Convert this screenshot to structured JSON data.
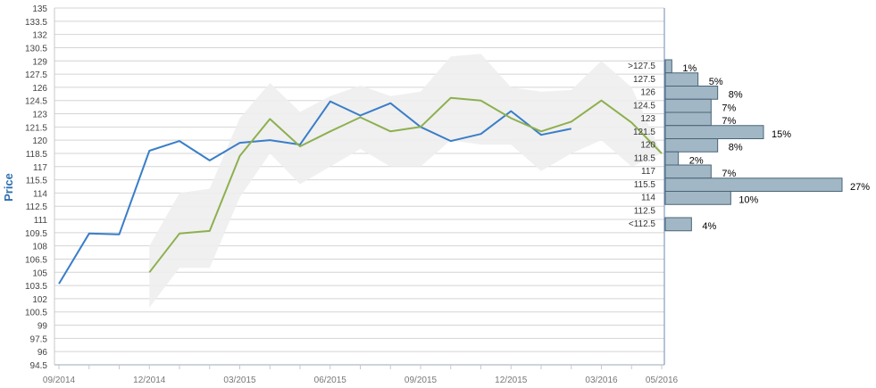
{
  "chart_data": [
    {
      "type": "line",
      "title": "",
      "xlabel": "",
      "ylabel": "Price",
      "ylim": [
        94.5,
        135
      ],
      "y_ticks": [
        94.5,
        96,
        97.5,
        99,
        100.5,
        102,
        103.5,
        105,
        106.5,
        108,
        109.5,
        111,
        112.5,
        114,
        115.5,
        117,
        118.5,
        120,
        121.5,
        123,
        124.5,
        126,
        127.5,
        129,
        130.5,
        132,
        133.5,
        135
      ],
      "x_ticks": [
        {
          "x": "2014-09",
          "label": "09/2014"
        },
        {
          "x": "2014-12",
          "label": "12/2014"
        },
        {
          "x": "2015-03",
          "label": "03/2015"
        },
        {
          "x": "2015-06",
          "label": "06/2015"
        },
        {
          "x": "2015-09",
          "label": "09/2015"
        },
        {
          "x": "2015-12",
          "label": "12/2015"
        },
        {
          "x": "2016-03",
          "label": "03/2016"
        },
        {
          "x": "2016-05",
          "label": "05/2016"
        }
      ],
      "grid": true,
      "series": [
        {
          "color": "#3a7ec8",
          "points": [
            {
              "x": "2014-09",
              "y": 103.7
            },
            {
              "x": "2014-10",
              "y": 109.4
            },
            {
              "x": "2014-11",
              "y": 109.3
            },
            {
              "x": "2014-12",
              "y": 118.8
            },
            {
              "x": "2015-01",
              "y": 119.9
            },
            {
              "x": "2015-02",
              "y": 117.7
            },
            {
              "x": "2015-03",
              "y": 119.7
            },
            {
              "x": "2015-04",
              "y": 120.0
            },
            {
              "x": "2015-05",
              "y": 119.5
            },
            {
              "x": "2015-06",
              "y": 124.4
            },
            {
              "x": "2015-07",
              "y": 122.8
            },
            {
              "x": "2015-08",
              "y": 124.2
            },
            {
              "x": "2015-09",
              "y": 121.5
            },
            {
              "x": "2015-10",
              "y": 119.9
            },
            {
              "x": "2015-11",
              "y": 120.7
            },
            {
              "x": "2015-12",
              "y": 123.3
            },
            {
              "x": "2016-01",
              "y": 120.6
            },
            {
              "x": "2016-02",
              "y": 121.3
            }
          ]
        },
        {
          "color": "#8db04f",
          "points": [
            {
              "x": "2014-12",
              "y": 105.0
            },
            {
              "x": "2015-01",
              "y": 109.4
            },
            {
              "x": "2015-02",
              "y": 109.7
            },
            {
              "x": "2015-03",
              "y": 118.2
            },
            {
              "x": "2015-04",
              "y": 122.4
            },
            {
              "x": "2015-05",
              "y": 119.3
            },
            {
              "x": "2015-06",
              "y": 121.0
            },
            {
              "x": "2015-07",
              "y": 122.6
            },
            {
              "x": "2015-08",
              "y": 121.0
            },
            {
              "x": "2015-09",
              "y": 121.5
            },
            {
              "x": "2015-10",
              "y": 124.8
            },
            {
              "x": "2015-11",
              "y": 124.5
            },
            {
              "x": "2015-12",
              "y": 122.5
            },
            {
              "x": "2016-01",
              "y": 121.0
            },
            {
              "x": "2016-02",
              "y": 122.1
            },
            {
              "x": "2016-03",
              "y": 124.5
            },
            {
              "x": "2016-04",
              "y": 122.0
            },
            {
              "x": "2016-05",
              "y": 118.5
            }
          ]
        }
      ],
      "band": {
        "color": "#eeeeee",
        "points": [
          {
            "x": "2014-12",
            "low": 101.0,
            "high": 108.0
          },
          {
            "x": "2015-01",
            "low": 105.5,
            "high": 114.0
          },
          {
            "x": "2015-02",
            "low": 105.5,
            "high": 114.5
          },
          {
            "x": "2015-03",
            "low": 113.5,
            "high": 122.5
          },
          {
            "x": "2015-04",
            "low": 118.5,
            "high": 126.5
          },
          {
            "x": "2015-05",
            "low": 115.0,
            "high": 123.2
          },
          {
            "x": "2015-06",
            "low": 117.0,
            "high": 125.0
          },
          {
            "x": "2015-07",
            "low": 119.0,
            "high": 126.2
          },
          {
            "x": "2015-08",
            "low": 117.0,
            "high": 125.0
          },
          {
            "x": "2015-09",
            "low": 117.0,
            "high": 125.5
          },
          {
            "x": "2015-10",
            "low": 120.0,
            "high": 129.5
          },
          {
            "x": "2015-11",
            "low": 119.5,
            "high": 129.8
          },
          {
            "x": "2015-12",
            "low": 119.5,
            "high": 126.0
          },
          {
            "x": "2016-01",
            "low": 116.5,
            "high": 125.5
          },
          {
            "x": "2016-02",
            "low": 118.5,
            "high": 125.7
          },
          {
            "x": "2016-03",
            "low": 120.0,
            "high": 129.0
          },
          {
            "x": "2016-04",
            "low": 117.0,
            "high": 126.0
          },
          {
            "x": "2016-05",
            "low": 118.5,
            "high": 118.5
          }
        ]
      }
    },
    {
      "type": "bar",
      "orientation": "horizontal",
      "bar_color": "#a1b7c5",
      "categories": [
        ">127.5",
        "127.5",
        "126",
        "124.5",
        "123",
        "121.5",
        "120",
        "118.5",
        "117",
        "115.5",
        "114",
        "112.5",
        "<112.5"
      ],
      "values": [
        1,
        5,
        8,
        7,
        7,
        15,
        8,
        2,
        7,
        27,
        10,
        0,
        4
      ],
      "value_labels": [
        "1%",
        "5%",
        "8%",
        "7%",
        "7%",
        "15%",
        "8%",
        "2%",
        "7%",
        "27%",
        "10%",
        "",
        "4%"
      ]
    }
  ]
}
